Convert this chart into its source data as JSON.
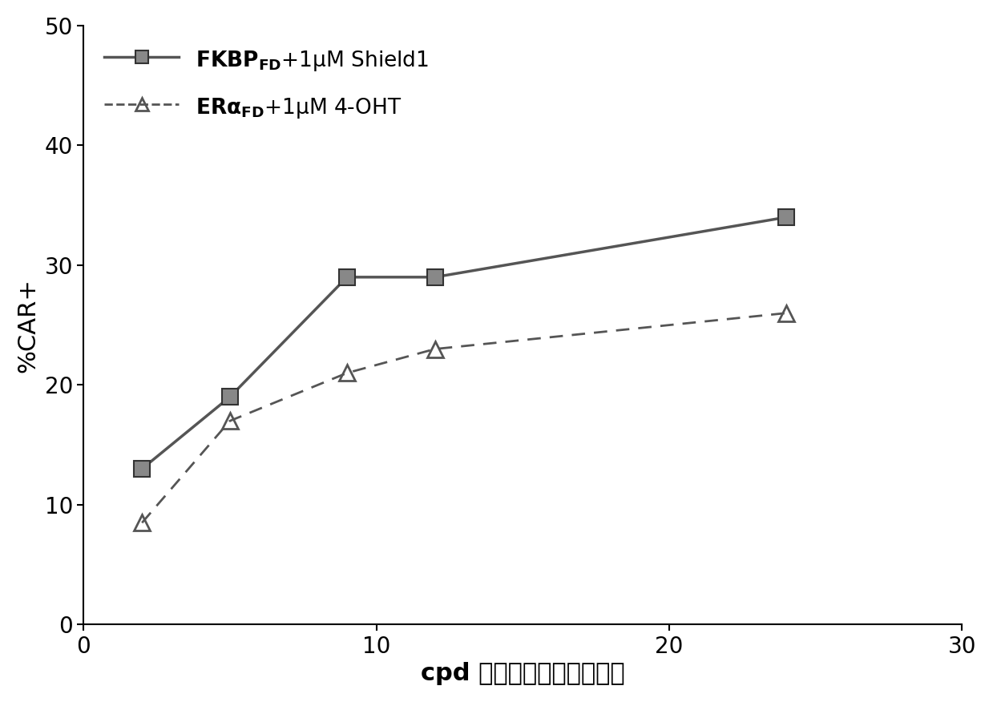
{
  "series1": {
    "label_main": "FKBP",
    "label_sub": "FD",
    "label_rest": "+1μM Shield1",
    "x": [
      2,
      5,
      9,
      12,
      24
    ],
    "y": [
      13.0,
      19.0,
      29.0,
      29.0,
      34.0
    ],
    "color": "#555555",
    "linestyle": "solid",
    "marker": "s",
    "markersize": 14
  },
  "series2": {
    "label_main": "ERα",
    "label_sub": "FD",
    "label_rest": "+1μM 4-OHT",
    "x": [
      2,
      5,
      9,
      12,
      24
    ],
    "y": [
      8.5,
      17.0,
      21.0,
      23.0,
      26.0
    ],
    "color": "#555555",
    "linestyle": "dashed",
    "marker": "^",
    "markersize": 14
  },
  "xlabel": "cpd 处理后的时间（小时）",
  "ylabel": "%CAR+",
  "xlim": [
    0,
    30
  ],
  "ylim": [
    0,
    50
  ],
  "xticks": [
    0,
    10,
    20,
    30
  ],
  "yticks": [
    0,
    10,
    20,
    30,
    40,
    50
  ],
  "background_color": "#ffffff",
  "tick_fontsize": 20,
  "label_fontsize": 22,
  "legend_fontsize": 19
}
